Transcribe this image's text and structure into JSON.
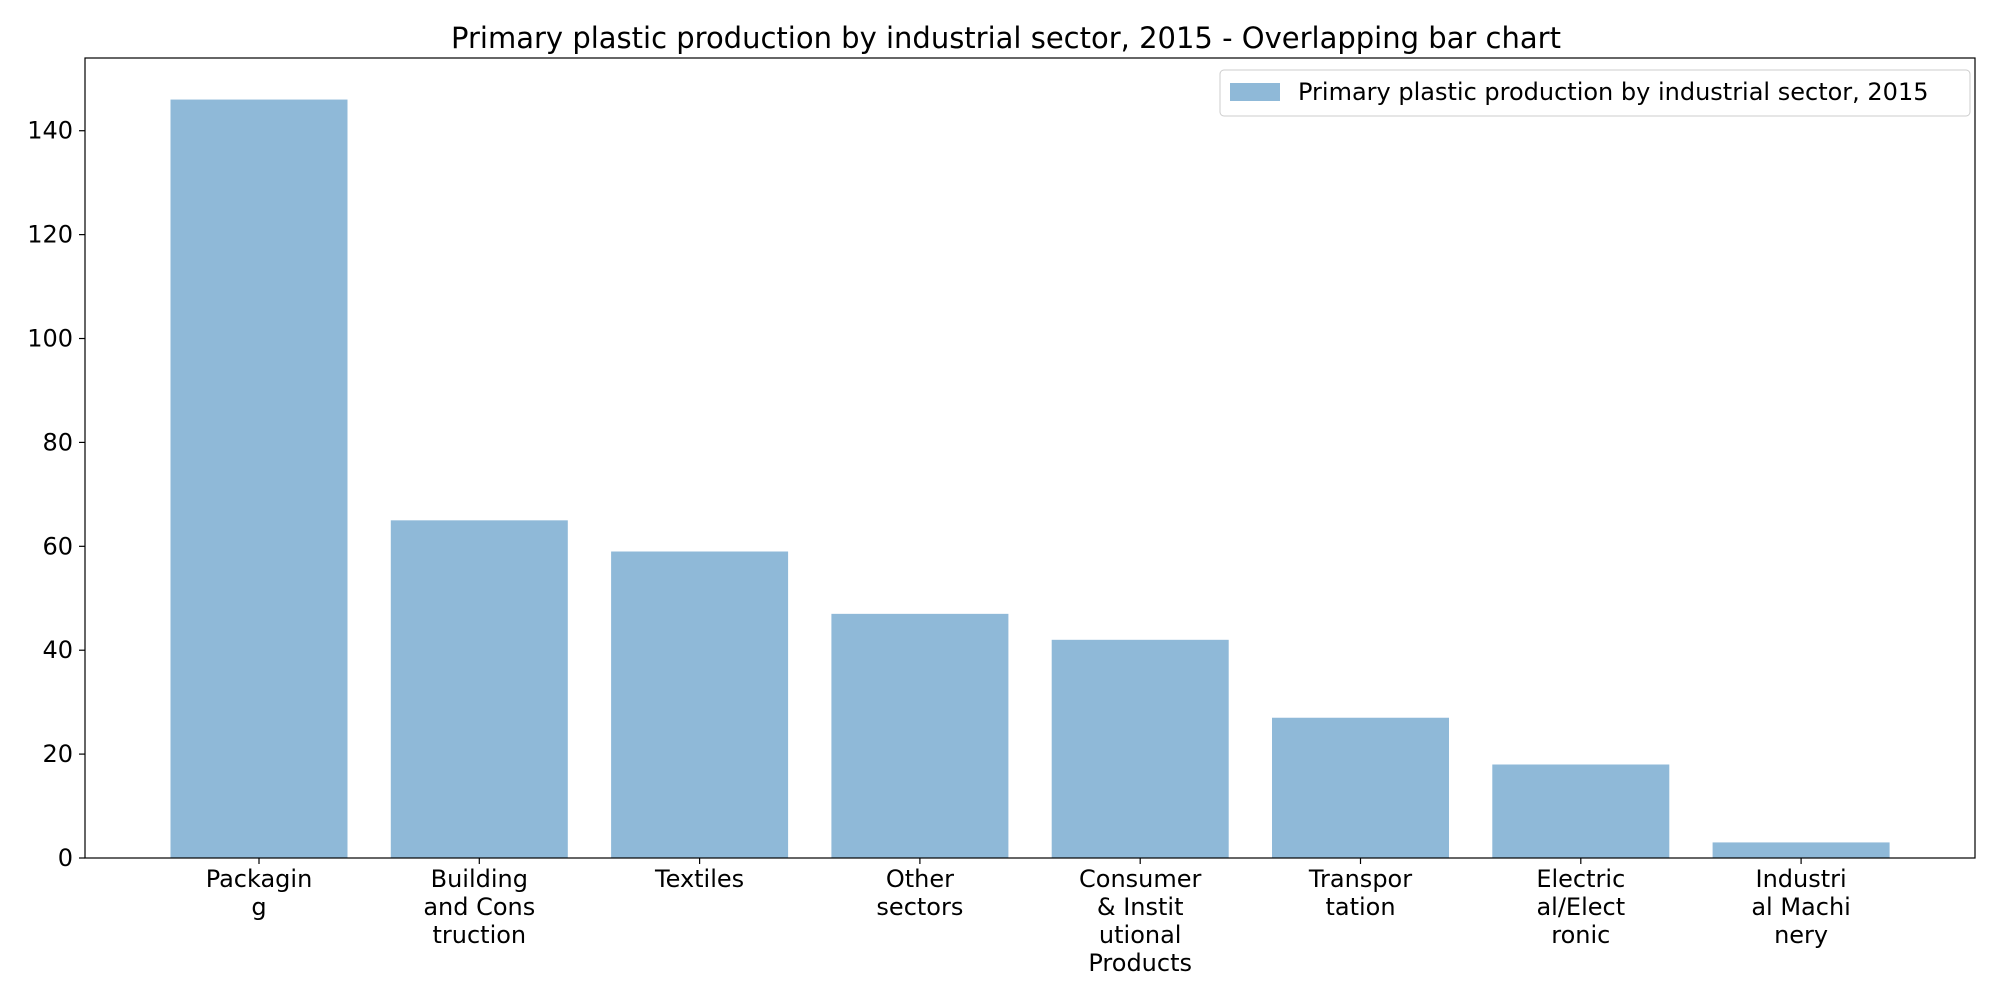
{
  "chart_data": {
    "type": "bar",
    "title": "Primary plastic production by industrial sector, 2015 - Overlapping bar chart",
    "xlabel": "",
    "ylabel": "",
    "categories": [
      [
        "Packagin",
        "g"
      ],
      [
        "Building",
        "and Cons",
        "truction"
      ],
      [
        "Textiles"
      ],
      [
        "Other",
        "sectors"
      ],
      [
        "Consumer",
        "& Instit",
        "utional",
        "Products"
      ],
      [
        "Transpor",
        "tation"
      ],
      [
        "Electric",
        "al/Elect",
        "ronic"
      ],
      [
        "Industri",
        "al Machi",
        "nery"
      ]
    ],
    "series": [
      {
        "name": "Primary plastic production by industrial sector, 2015",
        "values": [
          146,
          65,
          59,
          47,
          42,
          27,
          18,
          3
        ],
        "color": "#8fb9d8"
      }
    ],
    "ylim": [
      0,
      154
    ],
    "yticks": [
      0,
      20,
      40,
      60,
      80,
      100,
      120,
      140
    ],
    "grid": false,
    "legend_position": "top-right"
  }
}
